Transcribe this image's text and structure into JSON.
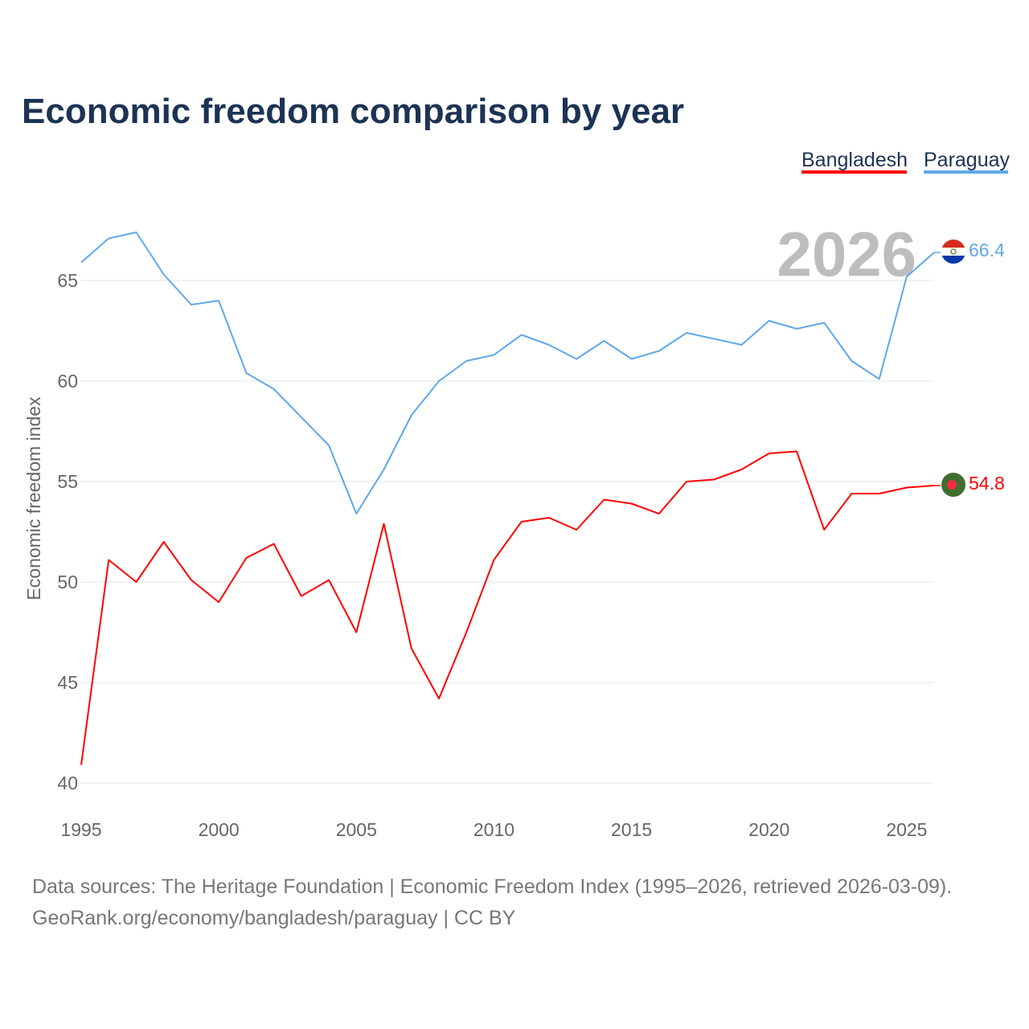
{
  "chart_data": {
    "type": "line",
    "title": "Economic freedom comparison by year",
    "ylabel": "Economic freedom index",
    "xlabel": "",
    "xlim": [
      1995,
      2026
    ],
    "ylim": [
      40,
      68
    ],
    "yticks": [
      40,
      45,
      50,
      55,
      60,
      65
    ],
    "xticks": [
      1995,
      2000,
      2005,
      2010,
      2015,
      2020,
      2025
    ],
    "grid": true,
    "legend_position": "top-right",
    "current_year_label": "2026",
    "x": [
      1995,
      1996,
      1997,
      1998,
      1999,
      2000,
      2001,
      2002,
      2003,
      2004,
      2005,
      2006,
      2007,
      2008,
      2009,
      2010,
      2011,
      2012,
      2013,
      2014,
      2015,
      2016,
      2017,
      2018,
      2019,
      2020,
      2021,
      2022,
      2023,
      2024,
      2025,
      2026
    ],
    "series": [
      {
        "name": "Bangladesh",
        "color": "#ff0000",
        "end_label": "54.8",
        "values": [
          40.9,
          51.1,
          50.0,
          52.0,
          50.1,
          49.0,
          51.2,
          51.9,
          49.3,
          50.1,
          47.5,
          52.9,
          46.7,
          44.2,
          47.5,
          51.1,
          53.0,
          53.2,
          52.6,
          54.1,
          53.9,
          53.4,
          55.0,
          55.1,
          55.6,
          56.4,
          56.5,
          52.6,
          54.4,
          54.4,
          54.7,
          54.8
        ]
      },
      {
        "name": "Paraguay",
        "color": "#5fa8ea",
        "end_label": "66.4",
        "values": [
          65.9,
          67.1,
          67.4,
          65.3,
          63.8,
          64.0,
          60.4,
          59.6,
          58.2,
          56.8,
          53.4,
          55.6,
          58.3,
          60.0,
          61.0,
          61.3,
          62.3,
          61.8,
          61.1,
          62.0,
          61.1,
          61.5,
          62.4,
          62.1,
          61.8,
          63.0,
          62.6,
          62.9,
          61.0,
          60.1,
          65.2,
          66.4
        ]
      }
    ]
  },
  "footer": {
    "line1": "Data sources: The Heritage Foundation | Economic Freedom Index (1995–2026, retrieved 2026-03-09).",
    "line2": "GeoRank.org/economy/bangladesh/paraguay | CC BY"
  }
}
